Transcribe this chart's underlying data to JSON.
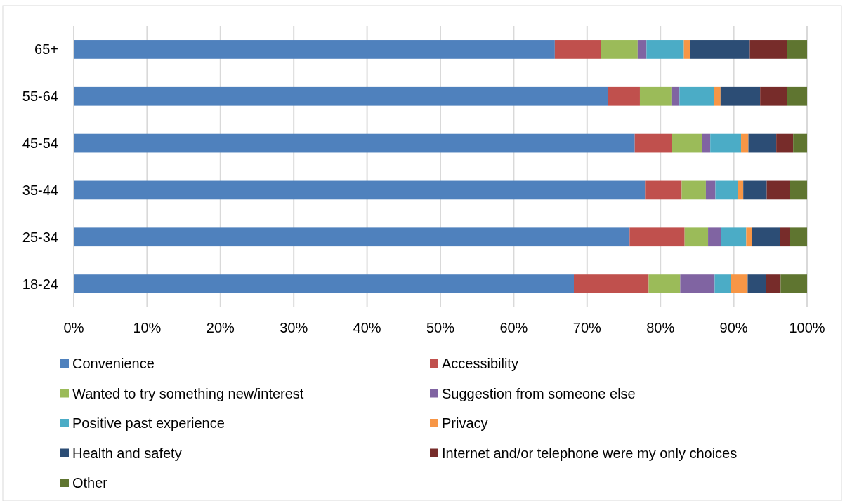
{
  "chart_data": {
    "type": "bar",
    "orientation": "horizontal",
    "stacked": true,
    "categories": [
      "65+",
      "55-64",
      "45-54",
      "35-44",
      "25-34",
      "18-24"
    ],
    "series": [
      {
        "name": "Convenience",
        "color": "#4f81bd",
        "values": [
          65.6,
          72.8,
          76.5,
          77.9,
          75.8,
          68.2
        ]
      },
      {
        "name": "Accessibility",
        "color": "#c0504d",
        "values": [
          6.3,
          4.4,
          5.1,
          5.0,
          7.5,
          10.2
        ]
      },
      {
        "name": "Wanted to try something new/interest",
        "color": "#9bbb59",
        "values": [
          5.0,
          4.3,
          4.1,
          3.3,
          3.2,
          4.3
        ]
      },
      {
        "name": "Suggestion from someone else",
        "color": "#8064a2",
        "values": [
          1.2,
          1.1,
          1.1,
          1.3,
          1.8,
          4.7
        ]
      },
      {
        "name": "Positive past experience",
        "color": "#4bacc6",
        "values": [
          5.1,
          4.7,
          4.2,
          3.1,
          3.4,
          2.2
        ]
      },
      {
        "name": "Privacy",
        "color": "#f79646",
        "values": [
          0.9,
          0.9,
          1.0,
          0.7,
          0.8,
          2.3
        ]
      },
      {
        "name": "Health and safety",
        "color": "#2c4d75",
        "values": [
          8.1,
          5.4,
          3.8,
          3.2,
          3.8,
          2.5
        ]
      },
      {
        "name": "Internet and/or telephone were my only choices",
        "color": "#772c2a",
        "values": [
          5.1,
          3.7,
          2.3,
          3.2,
          1.4,
          2.0
        ]
      },
      {
        "name": "Other",
        "color": "#5f7530",
        "values": [
          2.7,
          2.7,
          1.9,
          2.3,
          2.3,
          3.6
        ]
      }
    ],
    "xlim": [
      0,
      100
    ],
    "xticks": [
      {
        "value": 0,
        "label": "0%"
      },
      {
        "value": 10,
        "label": "10%"
      },
      {
        "value": 20,
        "label": "20%"
      },
      {
        "value": 30,
        "label": "30%"
      },
      {
        "value": 40,
        "label": "40%"
      },
      {
        "value": 50,
        "label": "50%"
      },
      {
        "value": 60,
        "label": "60%"
      },
      {
        "value": 70,
        "label": "70%"
      },
      {
        "value": 80,
        "label": "80%"
      },
      {
        "value": 90,
        "label": "90%"
      },
      {
        "value": 100,
        "label": "100%"
      }
    ],
    "grid": "x",
    "legend": "bottom"
  }
}
